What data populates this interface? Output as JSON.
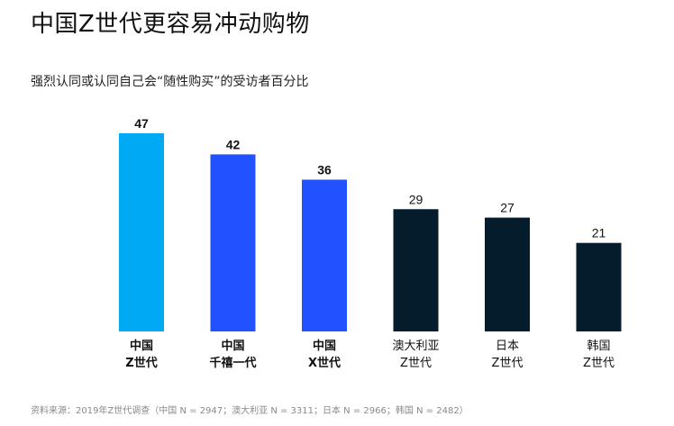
{
  "title": "中国Z世代更容易冲动购物",
  "subtitle": "强烈认同或认同自己会“随性购买”的受访者百分比",
  "source": "资料来源：2019年Z世代调查（中国 N = 2947；澳大利亚 N = 3311；日本 N = 2966；韩国 N = 2482）",
  "colors": {
    "gen_z_china": "#00a9f4",
    "china_other": "#2251ff",
    "other_markets": "#051c2c",
    "text": "#111111"
  },
  "chart_data": {
    "type": "bar",
    "categories": [
      [
        "中国",
        "Z世代"
      ],
      [
        "中国",
        "千禧一代"
      ],
      [
        "中国",
        "X世代"
      ],
      [
        "澳大利亚",
        "Z世代"
      ],
      [
        "日本",
        "Z世代"
      ],
      [
        "韩国",
        "Z世代"
      ]
    ],
    "values": [
      47,
      42,
      36,
      29,
      27,
      21
    ],
    "bar_colors": [
      "#00a9f4",
      "#2251ff",
      "#2251ff",
      "#051c2c",
      "#051c2c",
      "#051c2c"
    ],
    "bold_labels": [
      true,
      true,
      true,
      false,
      false,
      false
    ],
    "ylim": [
      0,
      47
    ],
    "grid": false,
    "data_labels": true
  }
}
